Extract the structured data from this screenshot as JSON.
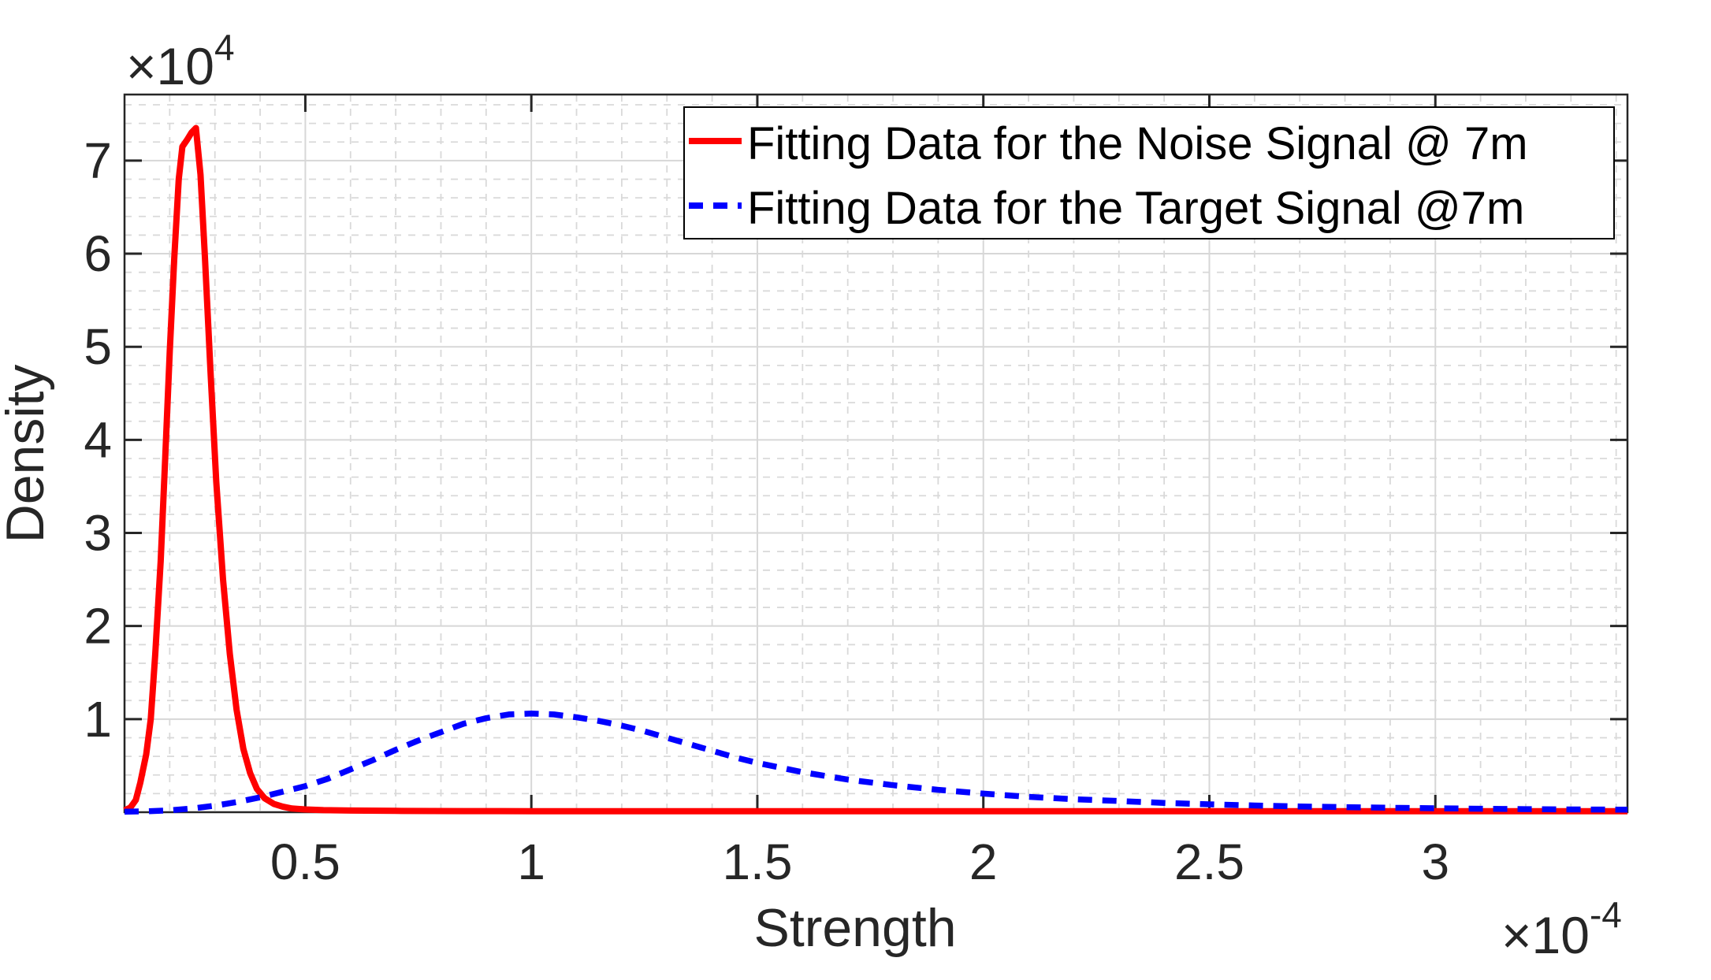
{
  "figure": {
    "background": "#ffffff",
    "axis_color": "#262626",
    "text_color": "#262626"
  },
  "chart_data": {
    "type": "line",
    "title": "",
    "xlabel": "Strength",
    "ylabel": "Density",
    "x_scale_label": {
      "base": "×10",
      "exp": "-4"
    },
    "y_scale_label": {
      "base": "×10",
      "exp": "4"
    },
    "x_units": "1e-4",
    "y_units": "1e4",
    "xlim": [
      0.1,
      3.425
    ],
    "ylim": [
      0,
      7.71
    ],
    "x_ticks": [
      0.5,
      1,
      1.5,
      2,
      2.5,
      3
    ],
    "x_tick_labels": [
      "0.5",
      "1",
      "1.5",
      "2",
      "2.5",
      "3"
    ],
    "y_ticks": [
      1,
      2,
      3,
      4,
      5,
      6,
      7
    ],
    "y_tick_labels": [
      "1",
      "2",
      "3",
      "4",
      "5",
      "6",
      "7"
    ],
    "x_minor_step": 0.1,
    "y_minor_step": 0.2,
    "grid": true,
    "minor_grid": true,
    "legend_position": "northeast",
    "series": [
      {
        "name": "Fitting Data for the Noise Signal @ 7m",
        "color": "#ff0000",
        "style": "solid",
        "x": [
          0.1,
          0.113,
          0.125,
          0.135,
          0.148,
          0.158,
          0.168,
          0.18,
          0.19,
          0.2,
          0.21,
          0.22,
          0.228,
          0.238,
          0.248,
          0.258,
          0.268,
          0.278,
          0.29,
          0.303,
          0.318,
          0.333,
          0.348,
          0.363,
          0.378,
          0.393,
          0.41,
          0.43,
          0.45,
          0.47,
          0.5,
          0.54,
          0.6,
          0.7,
          0.85,
          1.0,
          1.25,
          1.5,
          1.75,
          2.0,
          2.25,
          2.5,
          2.75,
          3.0,
          3.2,
          3.425
        ],
        "y": [
          0.02,
          0.05,
          0.13,
          0.32,
          0.62,
          1.0,
          1.7,
          2.7,
          3.8,
          4.95,
          5.95,
          6.8,
          7.15,
          7.22,
          7.3,
          7.35,
          6.85,
          5.95,
          4.75,
          3.55,
          2.5,
          1.7,
          1.1,
          0.68,
          0.42,
          0.25,
          0.15,
          0.09,
          0.06,
          0.04,
          0.03,
          0.022,
          0.018,
          0.014,
          0.012,
          0.011,
          0.01,
          0.01,
          0.01,
          0.01,
          0.01,
          0.01,
          0.01,
          0.01,
          0.01,
          0.01
        ]
      },
      {
        "name": "Fitting Data for the Target Signal @7m",
        "color": "#0000ff",
        "style": "dashed",
        "x": [
          0.1,
          0.15,
          0.2,
          0.25,
          0.3,
          0.35,
          0.4,
          0.45,
          0.5,
          0.55,
          0.6,
          0.65,
          0.7,
          0.75,
          0.8,
          0.85,
          0.9,
          0.95,
          1.0,
          1.05,
          1.1,
          1.15,
          1.2,
          1.25,
          1.3,
          1.35,
          1.4,
          1.45,
          1.5,
          1.6,
          1.7,
          1.8,
          1.9,
          2.0,
          2.1,
          2.2,
          2.3,
          2.4,
          2.5,
          2.6,
          2.7,
          2.8,
          2.9,
          3.0,
          3.1,
          3.2,
          3.3,
          3.425
        ],
        "y": [
          0.005,
          0.01,
          0.02,
          0.04,
          0.07,
          0.11,
          0.16,
          0.22,
          0.28,
          0.36,
          0.46,
          0.56,
          0.67,
          0.77,
          0.86,
          0.95,
          1.01,
          1.05,
          1.06,
          1.05,
          1.02,
          0.98,
          0.93,
          0.87,
          0.8,
          0.73,
          0.66,
          0.59,
          0.53,
          0.43,
          0.35,
          0.29,
          0.24,
          0.2,
          0.165,
          0.14,
          0.12,
          0.1,
          0.085,
          0.072,
          0.062,
          0.054,
          0.047,
          0.042,
          0.037,
          0.033,
          0.03,
          0.027
        ]
      }
    ]
  }
}
